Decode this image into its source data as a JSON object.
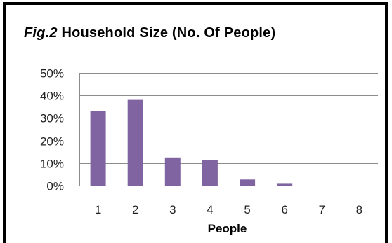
{
  "chart_data": {
    "type": "bar",
    "title_prefix": "Fig.2",
    "title": "Household Size (No. Of People)",
    "xlabel": "People",
    "ylabel": "",
    "categories": [
      "1",
      "2",
      "3",
      "4",
      "5",
      "6",
      "7",
      "8"
    ],
    "values": [
      33,
      38,
      12.5,
      11.5,
      2.7,
      0.8,
      0,
      0
    ],
    "ylim": [
      0,
      50
    ],
    "yticks": [
      0,
      10,
      20,
      30,
      40,
      50
    ],
    "ytick_format": "percent",
    "grid": true,
    "legend": "none",
    "bar_color": "#8064a2",
    "grid_color": "#8c8c8c"
  }
}
